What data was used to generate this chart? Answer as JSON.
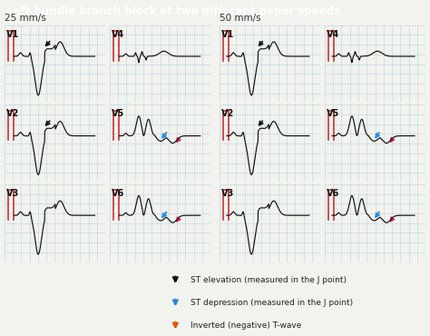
{
  "title": "Left bundle branch block at two different paper speeds",
  "title_bg": "#3bbfbf",
  "title_accent": "#b5c832",
  "title_color": "white",
  "background_color": "#f2f2ee",
  "grid_bg": "#ddeef5",
  "grid_color": "#b8d4e0",
  "speed_labels": [
    "25 mm/s",
    "50 mm/s"
  ],
  "ecg_color": "#111111",
  "cal_color": "#cc3333",
  "black_arrow_color": "#111111",
  "blue_arrow_color": "#2288dd",
  "pink_arrow_color": "#cc2266",
  "legend_arrow_colors": [
    "#111111",
    "#2288dd",
    "#dd5500"
  ],
  "legend_texts": [
    "ST elevation (measured in the J point)",
    "ST depression (measured in the J point)",
    "Inverted (negative) T-wave"
  ]
}
